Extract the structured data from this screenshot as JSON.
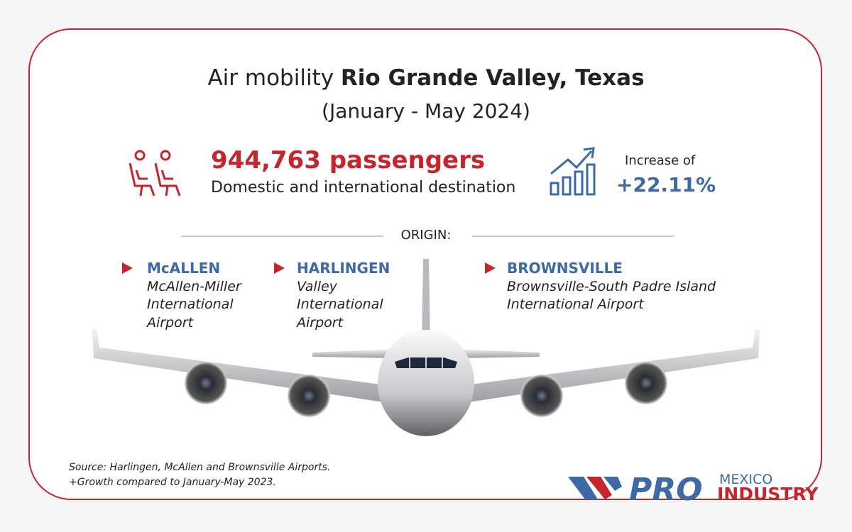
{
  "header": {
    "title_prefix": "Air mobility",
    "title_bold": "Rio Grande Valley, Texas",
    "subtitle": "(January - May 2024)"
  },
  "passengers": {
    "headline": "944,763 passengers",
    "detail": "Domestic and international destination"
  },
  "increase": {
    "label": "Increase of",
    "value": "+22.11%"
  },
  "origin_label": "ORIGIN:",
  "airports": [
    {
      "code": "McALLEN",
      "lines": [
        "McAllen-Miller",
        "International",
        "Airport"
      ]
    },
    {
      "code": "HARLINGEN",
      "lines": [
        "Valley",
        "International",
        "Airport"
      ]
    },
    {
      "code": "BROWNSVILLE",
      "lines": [
        "Brownsville-South Padre Island",
        "International Airport"
      ]
    }
  ],
  "source": [
    "Source: Harlingen, McAllen and Brownsville Airports.",
    "+Growth compared to January-May 2023."
  ],
  "logo": {
    "pro": "PRO",
    "top": "MEXICO",
    "bottom": "INDUSTRY"
  }
}
